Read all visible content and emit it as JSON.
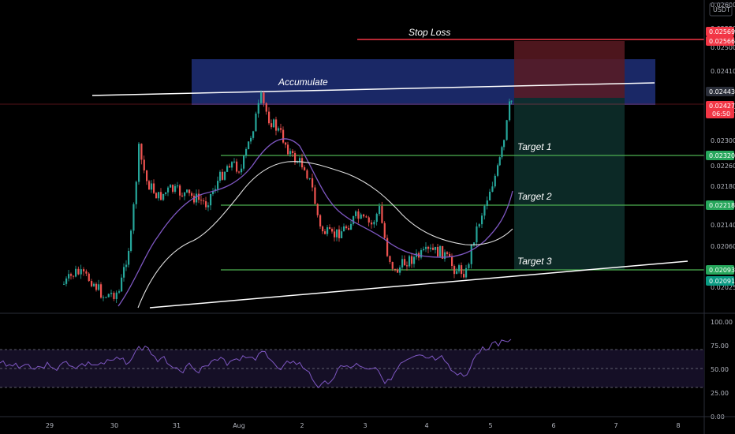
{
  "currency": "USDT",
  "annotations": {
    "stop_loss": "Stop Loss",
    "accumulate": "Accumulate",
    "target1": "Target 1",
    "target2": "Target 2",
    "target3": "Target 3"
  },
  "price_axis": {
    "ticks": [
      "0.02600",
      "0.02550",
      "0.02500",
      "0.02410",
      "0.02350",
      "0.02300",
      "0.02260",
      "0.02180",
      "0.02140",
      "0.02060",
      "0.02025"
    ],
    "tags": [
      {
        "label": "0.02569",
        "color": "#f23645"
      },
      {
        "label": "0.02566",
        "color": "#f23645"
      },
      {
        "label": "0.02443",
        "color": "#2a2e39"
      },
      {
        "label": "0.02427",
        "sub": "06:50",
        "color": "#f23645"
      },
      {
        "label": "0.02320",
        "color": "#26a65b"
      },
      {
        "label": "0.02218",
        "color": "#26a65b"
      },
      {
        "label": "0.02093",
        "color": "#26a65b"
      },
      {
        "label": "0.02091",
        "color": "#089981"
      }
    ]
  },
  "rsi_axis": {
    "ticks": [
      "100.00",
      "75.00",
      "50.00",
      "25.00",
      "0.00"
    ]
  },
  "time_axis": {
    "labels": [
      "29",
      "30",
      "31",
      "Aug",
      "2",
      "3",
      "4",
      "5",
      "6",
      "7",
      "8"
    ]
  },
  "colors": {
    "bull": "#26a69a",
    "bear": "#ef5350",
    "accumulate_zone": "#1e2f78",
    "stop_line": "#f23645",
    "target_line": "#4caf50",
    "ma_fast": "#7e57c2",
    "ma_slow": "#e0e0e0",
    "rsi": "#7e57c2"
  }
}
